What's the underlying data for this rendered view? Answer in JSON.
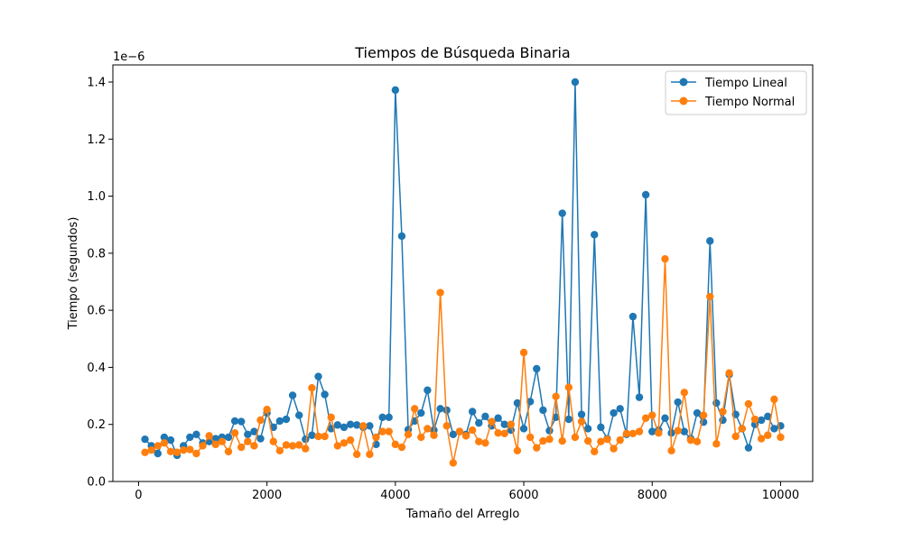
{
  "chart_data": {
    "type": "line",
    "title": "Tiempos de Búsqueda Binaria",
    "xlabel": "Tamaño del Arreglo",
    "ylabel": "Tiempo (segundos)",
    "y_offset_label": "1e−6",
    "xlim": [
      -400,
      10500
    ],
    "ylim": [
      0.0,
      1.46
    ],
    "x_ticks": [
      0,
      2000,
      4000,
      6000,
      8000,
      10000
    ],
    "x_tick_labels": [
      "0",
      "2000",
      "4000",
      "6000",
      "8000",
      "10000"
    ],
    "y_ticks": [
      0.0,
      0.2,
      0.4,
      0.6,
      0.8,
      1.0,
      1.2,
      1.4
    ],
    "y_tick_labels": [
      "0.0",
      "0.2",
      "0.4",
      "0.6",
      "0.8",
      "1.0",
      "1.2",
      "1.4"
    ],
    "legend_position": "top-right",
    "grid": false,
    "x": [
      100,
      200,
      300,
      400,
      500,
      600,
      700,
      800,
      900,
      1000,
      1100,
      1200,
      1300,
      1400,
      1500,
      1600,
      1700,
      1800,
      1900,
      2000,
      2100,
      2200,
      2300,
      2400,
      2500,
      2600,
      2700,
      2800,
      2900,
      3000,
      3100,
      3200,
      3300,
      3400,
      3500,
      3600,
      3700,
      3800,
      3900,
      4000,
      4100,
      4200,
      4300,
      4400,
      4500,
      4600,
      4700,
      4800,
      4900,
      5000,
      5100,
      5200,
      5300,
      5400,
      5500,
      5600,
      5700,
      5800,
      5900,
      6000,
      6100,
      6200,
      6300,
      6400,
      6500,
      6600,
      6700,
      6800,
      6900,
      7000,
      7100,
      7200,
      7300,
      7400,
      7500,
      7600,
      7700,
      7800,
      7900,
      8000,
      8100,
      8200,
      8300,
      8400,
      8500,
      8600,
      8700,
      8800,
      8900,
      9000,
      9100,
      9200,
      9300,
      9400,
      9500,
      9600,
      9700,
      9800,
      9900,
      10000
    ],
    "series": [
      {
        "name": "Tiempo Lineal",
        "color": "#1f77b4",
        "values": [
          0.148,
          0.125,
          0.098,
          0.155,
          0.145,
          0.092,
          0.125,
          0.155,
          0.165,
          0.135,
          0.14,
          0.15,
          0.155,
          0.155,
          0.212,
          0.21,
          0.165,
          0.175,
          0.15,
          0.24,
          0.19,
          0.212,
          0.218,
          0.302,
          0.232,
          0.148,
          0.162,
          0.368,
          0.305,
          0.185,
          0.198,
          0.19,
          0.2,
          0.198,
          0.19,
          0.195,
          0.13,
          0.225,
          0.225,
          1.372,
          0.86,
          0.182,
          0.212,
          0.24,
          0.32,
          0.18,
          0.255,
          0.25,
          0.165,
          0.175,
          0.165,
          0.245,
          0.205,
          0.228,
          0.195,
          0.222,
          0.2,
          0.18,
          0.275,
          0.185,
          0.28,
          0.395,
          0.25,
          0.178,
          0.225,
          0.94,
          0.218,
          1.4,
          0.235,
          0.185,
          0.865,
          0.19,
          0.15,
          0.24,
          0.255,
          0.165,
          0.578,
          0.295,
          1.005,
          0.175,
          0.18,
          0.222,
          0.17,
          0.278,
          0.175,
          0.15,
          0.24,
          0.208,
          0.843,
          0.275,
          0.215,
          0.375,
          0.235,
          0.185,
          0.118,
          0.2,
          0.215,
          0.228,
          0.185,
          0.195
        ]
      },
      {
        "name": "Tiempo Normal",
        "color": "#ff7f0e",
        "values": [
          0.102,
          0.11,
          0.125,
          0.135,
          0.105,
          0.102,
          0.11,
          0.112,
          0.098,
          0.125,
          0.16,
          0.13,
          0.14,
          0.105,
          0.17,
          0.12,
          0.14,
          0.125,
          0.215,
          0.252,
          0.14,
          0.108,
          0.128,
          0.125,
          0.128,
          0.115,
          0.328,
          0.158,
          0.158,
          0.225,
          0.125,
          0.135,
          0.145,
          0.095,
          0.195,
          0.095,
          0.155,
          0.175,
          0.175,
          0.13,
          0.12,
          0.165,
          0.255,
          0.155,
          0.185,
          0.162,
          0.662,
          0.195,
          0.065,
          0.175,
          0.16,
          0.18,
          0.14,
          0.135,
          0.21,
          0.17,
          0.168,
          0.2,
          0.108,
          0.452,
          0.155,
          0.118,
          0.142,
          0.148,
          0.298,
          0.142,
          0.33,
          0.155,
          0.21,
          0.142,
          0.105,
          0.14,
          0.148,
          0.115,
          0.145,
          0.168,
          0.168,
          0.175,
          0.222,
          0.232,
          0.17,
          0.78,
          0.108,
          0.178,
          0.312,
          0.145,
          0.14,
          0.232,
          0.648,
          0.132,
          0.245,
          0.38,
          0.158,
          0.185,
          0.272,
          0.218,
          0.15,
          0.162,
          0.288,
          0.155
        ]
      }
    ]
  }
}
